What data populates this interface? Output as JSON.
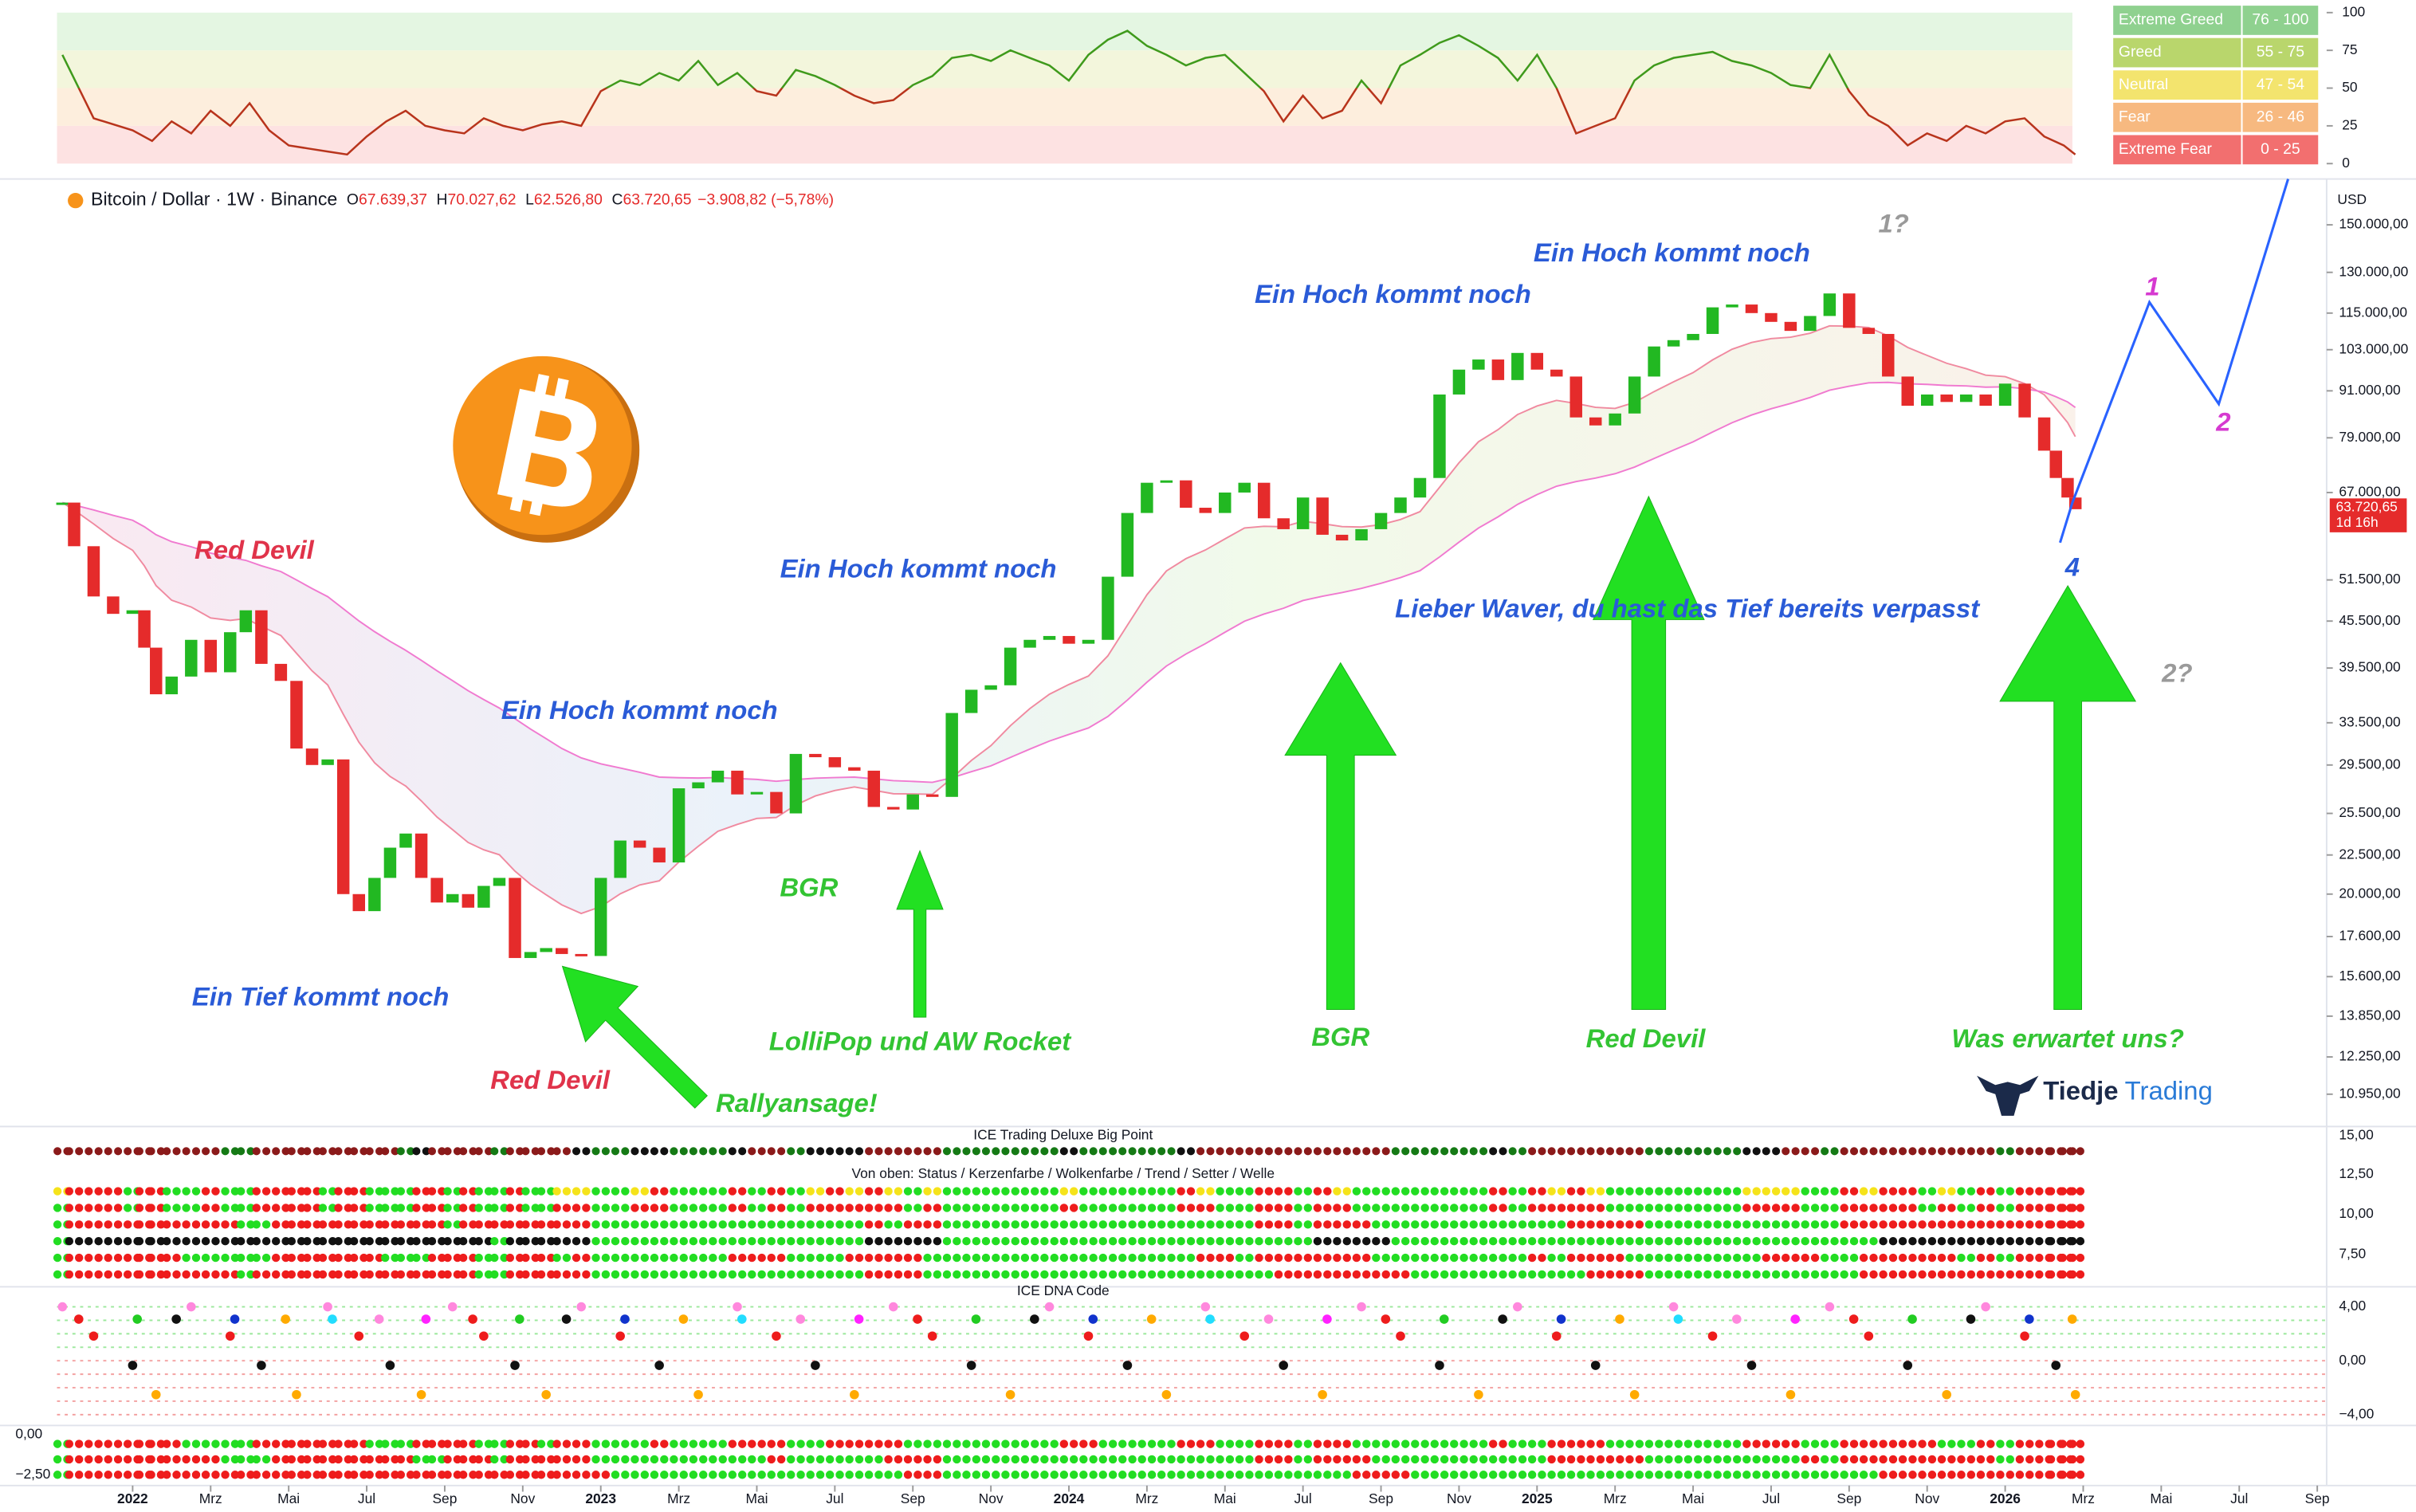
{
  "header": {
    "symbol": "Bitcoin / Dollar · 1W · Binance",
    "ohlc": [
      {
        "k": "O",
        "v": "67.639,37"
      },
      {
        "k": "H",
        "v": "70.027,62"
      },
      {
        "k": "L",
        "v": "62.526,80"
      },
      {
        "k": "C",
        "v": "63.720,65"
      }
    ],
    "change": "−3.908,82 (−5,78%)",
    "currency": "USD",
    "price_tag": "63.720,65",
    "countdown": "1d 16h"
  },
  "chart_data": [
    {
      "type": "line",
      "zones": [
        {
          "label": "Extreme Greed",
          "range": "76 - 100",
          "color": "#8fd18f"
        },
        {
          "label": "Greed",
          "range": "55 - 75",
          "color": "#b9d66c"
        },
        {
          "label": "Neutral",
          "range": "47 - 54",
          "color": "#f3e46e"
        },
        {
          "label": "Fear",
          "range": "26 - 46",
          "color": "#f7b980"
        },
        {
          "label": "Extreme Fear",
          "range": "0 - 25",
          "color": "#f26f6f"
        }
      ],
      "x": [
        -1.8,
        -1,
        0,
        0.5,
        1,
        1.5,
        2,
        2.5,
        3,
        3.5,
        4,
        4.5,
        5,
        5.5,
        6,
        6.5,
        7,
        7.5,
        8,
        8.5,
        9,
        9.5,
        10,
        10.5,
        11,
        11.5,
        12,
        12.5,
        13,
        13.5,
        14,
        14.5,
        15,
        15.5,
        16,
        16.5,
        17,
        17.5,
        18,
        18.5,
        19,
        19.5,
        20,
        20.5,
        21,
        21.5,
        22,
        22.5,
        23,
        23.5,
        24,
        24.5,
        25,
        25.5,
        26,
        26.5,
        27,
        27.5,
        28,
        28.5,
        29,
        29.5,
        30,
        30.5,
        31,
        31.5,
        32,
        32.5,
        33,
        33.5,
        34,
        34.5,
        35,
        35.5,
        36,
        36.5,
        37,
        37.5,
        38,
        38.5,
        39,
        39.5,
        40,
        40.5,
        41,
        41.5,
        42,
        42.5,
        43,
        43.5,
        44,
        44.5,
        45,
        45.5,
        46,
        46.5,
        47,
        47.5,
        48,
        48.5,
        49,
        49.5,
        49.8
      ],
      "values": [
        72,
        30,
        22,
        15,
        28,
        20,
        35,
        25,
        40,
        22,
        12,
        10,
        8,
        6,
        18,
        28,
        35,
        25,
        22,
        20,
        30,
        25,
        22,
        26,
        28,
        25,
        48,
        55,
        52,
        60,
        55,
        68,
        52,
        60,
        48,
        45,
        62,
        58,
        52,
        45,
        40,
        42,
        52,
        58,
        70,
        72,
        68,
        75,
        70,
        65,
        55,
        72,
        82,
        88,
        78,
        72,
        65,
        70,
        72,
        60,
        48,
        28,
        45,
        30,
        35,
        55,
        40,
        65,
        72,
        80,
        85,
        78,
        70,
        55,
        72,
        50,
        20,
        25,
        30,
        55,
        65,
        70,
        72,
        74,
        68,
        65,
        60,
        52,
        50,
        72,
        48,
        32,
        25,
        12,
        20,
        15,
        25,
        20,
        28,
        30,
        18,
        12,
        6
      ],
      "ylim": [
        0,
        100
      ],
      "yticks": [
        0,
        25,
        50,
        75,
        100
      ],
      "colors": {
        "above": "#3f9a1c",
        "below": "#b8341c"
      }
    },
    {
      "type": "candlestick",
      "log": true,
      "x": [
        -1.8,
        -1.5,
        -1,
        -0.5,
        0,
        0.3,
        0.6,
        1,
        1.5,
        2,
        2.5,
        2.9,
        3.3,
        3.8,
        4.2,
        4.6,
        5,
        5.4,
        5.8,
        6.2,
        6.6,
        7,
        7.4,
        7.8,
        8.2,
        8.6,
        9,
        9.4,
        9.8,
        10.2,
        10.6,
        11,
        11.5,
        12,
        12.5,
        13,
        13.5,
        14,
        14.5,
        15,
        15.5,
        16,
        16.5,
        17,
        17.5,
        18,
        18.5,
        19,
        19.5,
        20,
        20.5,
        21,
        21.5,
        22,
        22.5,
        23,
        23.5,
        24,
        24.5,
        25,
        25.5,
        26,
        26.5,
        27,
        27.5,
        28,
        28.5,
        29,
        29.5,
        30,
        30.5,
        31,
        31.5,
        32,
        32.5,
        33,
        33.5,
        34,
        34.5,
        35,
        35.5,
        36,
        36.5,
        37,
        37.5,
        38,
        38.5,
        39,
        39.5,
        40,
        40.5,
        41,
        41.5,
        42,
        42.5,
        43,
        43.5,
        44,
        44.5,
        45,
        45.5,
        46,
        46.5,
        47,
        47.5,
        48,
        48.5,
        49,
        49.3,
        49.6,
        49.8
      ],
      "values": [
        65000,
        57000,
        49000,
        46500,
        47000,
        42000,
        36500,
        38500,
        43000,
        39000,
        44000,
        47000,
        40000,
        38000,
        31000,
        29500,
        30000,
        20000,
        19000,
        21000,
        23000,
        24000,
        21000,
        19500,
        20000,
        19200,
        20500,
        21000,
        16500,
        16800,
        17000,
        16700,
        16600,
        21000,
        23500,
        23000,
        22000,
        27500,
        28000,
        29000,
        27000,
        27200,
        25500,
        30500,
        30200,
        29300,
        29000,
        26000,
        25800,
        27000,
        26800,
        34500,
        37000,
        37500,
        42000,
        43000,
        43500,
        42500,
        43000,
        52000,
        63000,
        69000,
        69500,
        64000,
        63000,
        67000,
        69000,
        62000,
        60000,
        66000,
        59000,
        58000,
        60000,
        63000,
        66000,
        70000,
        90000,
        97000,
        100000,
        94000,
        102000,
        97000,
        95000,
        84000,
        82000,
        85000,
        95000,
        104000,
        106000,
        108000,
        117000,
        118000,
        115000,
        112000,
        109000,
        114000,
        122000,
        110000,
        108000,
        95000,
        87000,
        90000,
        88000,
        90000,
        87000,
        93000,
        84000,
        76000,
        70000,
        66000,
        63720.65
      ],
      "colors": {
        "up": "#22b822",
        "down": "#e52b2b"
      },
      "ylim": [
        9980,
        170600
      ],
      "yticks": [
        {
          "value": 150000,
          "label": "150.000,00"
        },
        {
          "value": 130000,
          "label": "130.000,00"
        },
        {
          "value": 115000,
          "label": "115.000,00"
        },
        {
          "value": 103000,
          "label": "103.000,00"
        },
        {
          "value": 91000,
          "label": "91.000,00"
        },
        {
          "value": 79000,
          "label": "79.000,00"
        },
        {
          "value": 67000,
          "label": "67.000,00"
        },
        {
          "value": 51500,
          "label": "51.500,00"
        },
        {
          "value": 45500,
          "label": "45.500,00"
        },
        {
          "value": 39500,
          "label": "39.500,00"
        },
        {
          "value": 33500,
          "label": "33.500,00"
        },
        {
          "value": 29500,
          "label": "29.500,00"
        },
        {
          "value": 25500,
          "label": "25.500,00"
        },
        {
          "value": 22500,
          "label": "22.500,00"
        },
        {
          "value": 20000,
          "label": "20.000,00"
        },
        {
          "value": 17600,
          "label": "17.600,00"
        },
        {
          "value": 15600,
          "label": "15.600,00"
        },
        {
          "value": 13850,
          "label": "13.850,00"
        },
        {
          "value": 12250,
          "label": "12.250,00"
        },
        {
          "value": 10950,
          "label": "10.950,00"
        }
      ],
      "xlim": [
        -3.4,
        56.24
      ],
      "xticks": [
        {
          "value": 0,
          "label": "2022"
        },
        {
          "value": 2,
          "label": "Mrz"
        },
        {
          "value": 4,
          "label": "Mai"
        },
        {
          "value": 6,
          "label": "Jul"
        },
        {
          "value": 8,
          "label": "Sep"
        },
        {
          "value": 10,
          "label": "Nov"
        },
        {
          "value": 12,
          "label": "2023"
        },
        {
          "value": 14,
          "label": "Mrz"
        },
        {
          "value": 16,
          "label": "Mai"
        },
        {
          "value": 18,
          "label": "Jul"
        },
        {
          "value": 20,
          "label": "Sep"
        },
        {
          "value": 22,
          "label": "Nov"
        },
        {
          "value": 24,
          "label": "2024"
        },
        {
          "value": 26,
          "label": "Mrz"
        },
        {
          "value": 28,
          "label": "Mai"
        },
        {
          "value": 30,
          "label": "Jul"
        },
        {
          "value": 32,
          "label": "Sep"
        },
        {
          "value": 34,
          "label": "Nov"
        },
        {
          "value": 36,
          "label": "2025"
        },
        {
          "value": 38,
          "label": "Mrz"
        },
        {
          "value": 40,
          "label": "Mai"
        },
        {
          "value": 42,
          "label": "Jul"
        },
        {
          "value": 44,
          "label": "Sep"
        },
        {
          "value": 46,
          "label": "Nov"
        },
        {
          "value": 48,
          "label": "2026"
        },
        {
          "value": 50,
          "label": "Mrz"
        },
        {
          "value": 52,
          "label": "Mai"
        },
        {
          "value": 54,
          "label": "Jul"
        },
        {
          "value": 56,
          "label": "Sep"
        }
      ]
    }
  ],
  "annotations": [
    {
      "text": "Ein Hoch kommt noch",
      "color": "#2a5bd7"
    },
    {
      "text": "Ein Hoch kommt noch",
      "color": "#2a5bd7"
    },
    {
      "text": "Ein Hoch kommt noch",
      "color": "#2a5bd7"
    },
    {
      "text": "Ein Hoch kommt noch",
      "color": "#2a5bd7"
    },
    {
      "text": "Ein Tief kommt noch",
      "color": "#2a5bd7"
    },
    {
      "text": "Red Devil",
      "color": "#e0334a"
    },
    {
      "text": "Red Devil",
      "color": "#e0334a"
    },
    {
      "text": "Red Devil",
      "color": "#33c433"
    },
    {
      "text": "BGR",
      "color": "#33c433"
    },
    {
      "text": "BGR",
      "color": "#33c433"
    },
    {
      "text": "LolliPop und AW Rocket",
      "color": "#33c433"
    },
    {
      "text": "Rallyansage!",
      "color": "#33c433"
    },
    {
      "text": "Lieber Waver, du hast das Tief bereits verpasst",
      "color": "#2a5bd7"
    },
    {
      "text": "Was erwartet uns?",
      "color": "#33c433"
    },
    {
      "text": "1?",
      "color": "#9a9a9a"
    },
    {
      "text": "2?",
      "color": "#9a9a9a"
    },
    {
      "text": "1",
      "color": "#d63ad0"
    },
    {
      "text": "2",
      "color": "#d63ad0"
    },
    {
      "text": "4",
      "color": "#2a5bd7"
    }
  ],
  "logo": {
    "first": "Tiedje",
    "second": "Trading"
  },
  "panels": [
    {
      "title": "ICE Trading Deluxe Big Point",
      "axis": [
        "15,00"
      ]
    },
    {
      "title": "Von oben: Status / Kerzenfarbe / Wolkenfarbe / Trend / Setter / Welle",
      "axis": [
        "12,50",
        "10,00",
        "7,50"
      ]
    },
    {
      "title": "ICE DNA Code",
      "axis": [
        "4,00",
        "0,00",
        "−4,00"
      ]
    },
    {
      "axis": [
        "0,00",
        "−2,50"
      ]
    }
  ]
}
